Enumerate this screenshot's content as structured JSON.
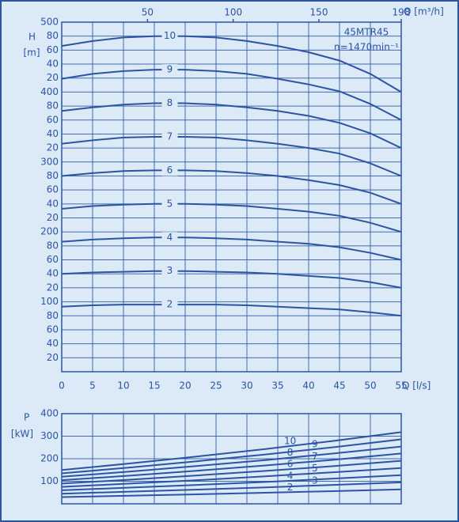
{
  "chart_data": [
    {
      "type": "line",
      "y_label": "H",
      "y_unit": "[m]",
      "x_label": "Q [l/s]",
      "x2_label": "Q [m³/h]",
      "annotations": [
        "45MTR45",
        "n=1470min⁻¹"
      ],
      "color": "#2b55a3",
      "grid": true,
      "x": [
        0,
        5,
        10,
        15,
        20,
        25,
        30,
        35,
        40,
        45,
        50,
        55
      ],
      "xlim": [
        0,
        55
      ],
      "xticks": [
        0,
        5,
        10,
        15,
        20,
        25,
        30,
        35,
        40,
        45,
        50,
        55
      ],
      "x2lim": [
        0,
        198
      ],
      "x2ticks": [
        50,
        100,
        150,
        198
      ],
      "ylim": [
        0,
        500
      ],
      "yticks": [
        20,
        40,
        60,
        80,
        100,
        {
          "value": 120,
          "label": "20"
        },
        {
          "value": 140,
          "label": "40"
        },
        {
          "value": 160,
          "label": "60"
        },
        {
          "value": 180,
          "label": "80"
        },
        200,
        {
          "value": 220,
          "label": "20"
        },
        {
          "value": 240,
          "label": "40"
        },
        {
          "value": 260,
          "label": "60"
        },
        {
          "value": 280,
          "label": "80"
        },
        300,
        {
          "value": 320,
          "label": "20"
        },
        {
          "value": 340,
          "label": "40"
        },
        {
          "value": 360,
          "label": "60"
        },
        {
          "value": 380,
          "label": "80"
        },
        400,
        {
          "value": 420,
          "label": "20"
        },
        {
          "value": 440,
          "label": "40"
        },
        {
          "value": 460,
          "label": "60"
        },
        {
          "value": 480,
          "label": "80"
        },
        500
      ],
      "series": [
        {
          "name": "2",
          "values": [
            93,
            95,
            96,
            96,
            96,
            96,
            95,
            93,
            91,
            89,
            85,
            80
          ]
        },
        {
          "name": "3",
          "values": [
            140,
            142,
            143,
            144,
            144,
            143,
            142,
            140,
            137,
            134,
            128,
            120
          ]
        },
        {
          "name": "4",
          "values": [
            186,
            189,
            191,
            192,
            192,
            191,
            189,
            186,
            183,
            178,
            170,
            160
          ]
        },
        {
          "name": "5",
          "values": [
            233,
            237,
            239,
            240,
            240,
            239,
            237,
            233,
            229,
            223,
            213,
            200
          ]
        },
        {
          "name": "6",
          "values": [
            280,
            284,
            287,
            288,
            288,
            287,
            284,
            280,
            274,
            267,
            256,
            240
          ]
        },
        {
          "name": "7",
          "values": [
            326,
            331,
            335,
            336,
            336,
            335,
            331,
            326,
            320,
            312,
            298,
            280
          ]
        },
        {
          "name": "8",
          "values": [
            373,
            378,
            382,
            384,
            384,
            382,
            378,
            373,
            366,
            356,
            341,
            320
          ]
        },
        {
          "name": "9",
          "values": [
            419,
            426,
            430,
            432,
            432,
            430,
            426,
            419,
            411,
            401,
            383,
            360
          ]
        },
        {
          "name": "10",
          "values": [
            466,
            473,
            478,
            480,
            480,
            478,
            473,
            466,
            457,
            445,
            426,
            400
          ]
        }
      ]
    },
    {
      "type": "line",
      "y_label": "P",
      "y_unit": "[kW]",
      "color": "#2b55a3",
      "grid": true,
      "x": [
        0,
        11,
        22,
        33,
        44,
        55
      ],
      "xlim": [
        0,
        55
      ],
      "ylim": [
        0,
        400
      ],
      "yticks": [
        100,
        200,
        300,
        400
      ],
      "series": [
        {
          "name": "2",
          "values": [
            30,
            36,
            42,
            49,
            56,
            64
          ]
        },
        {
          "name": "3",
          "values": [
            45,
            54,
            63,
            73,
            84,
            95
          ]
        },
        {
          "name": "4",
          "values": [
            60,
            72,
            84,
            97,
            112,
            127
          ]
        },
        {
          "name": "5",
          "values": [
            75,
            90,
            105,
            122,
            140,
            159
          ]
        },
        {
          "name": "6",
          "values": [
            90,
            107,
            126,
            146,
            167,
            191
          ]
        },
        {
          "name": "7",
          "values": [
            105,
            125,
            147,
            170,
            195,
            223
          ]
        },
        {
          "name": "8",
          "values": [
            120,
            143,
            168,
            194,
            223,
            254
          ]
        },
        {
          "name": "9",
          "values": [
            135,
            161,
            189,
            219,
            251,
            286
          ]
        },
        {
          "name": "10",
          "values": [
            150,
            179,
            210,
            243,
            279,
            318
          ]
        }
      ]
    }
  ]
}
